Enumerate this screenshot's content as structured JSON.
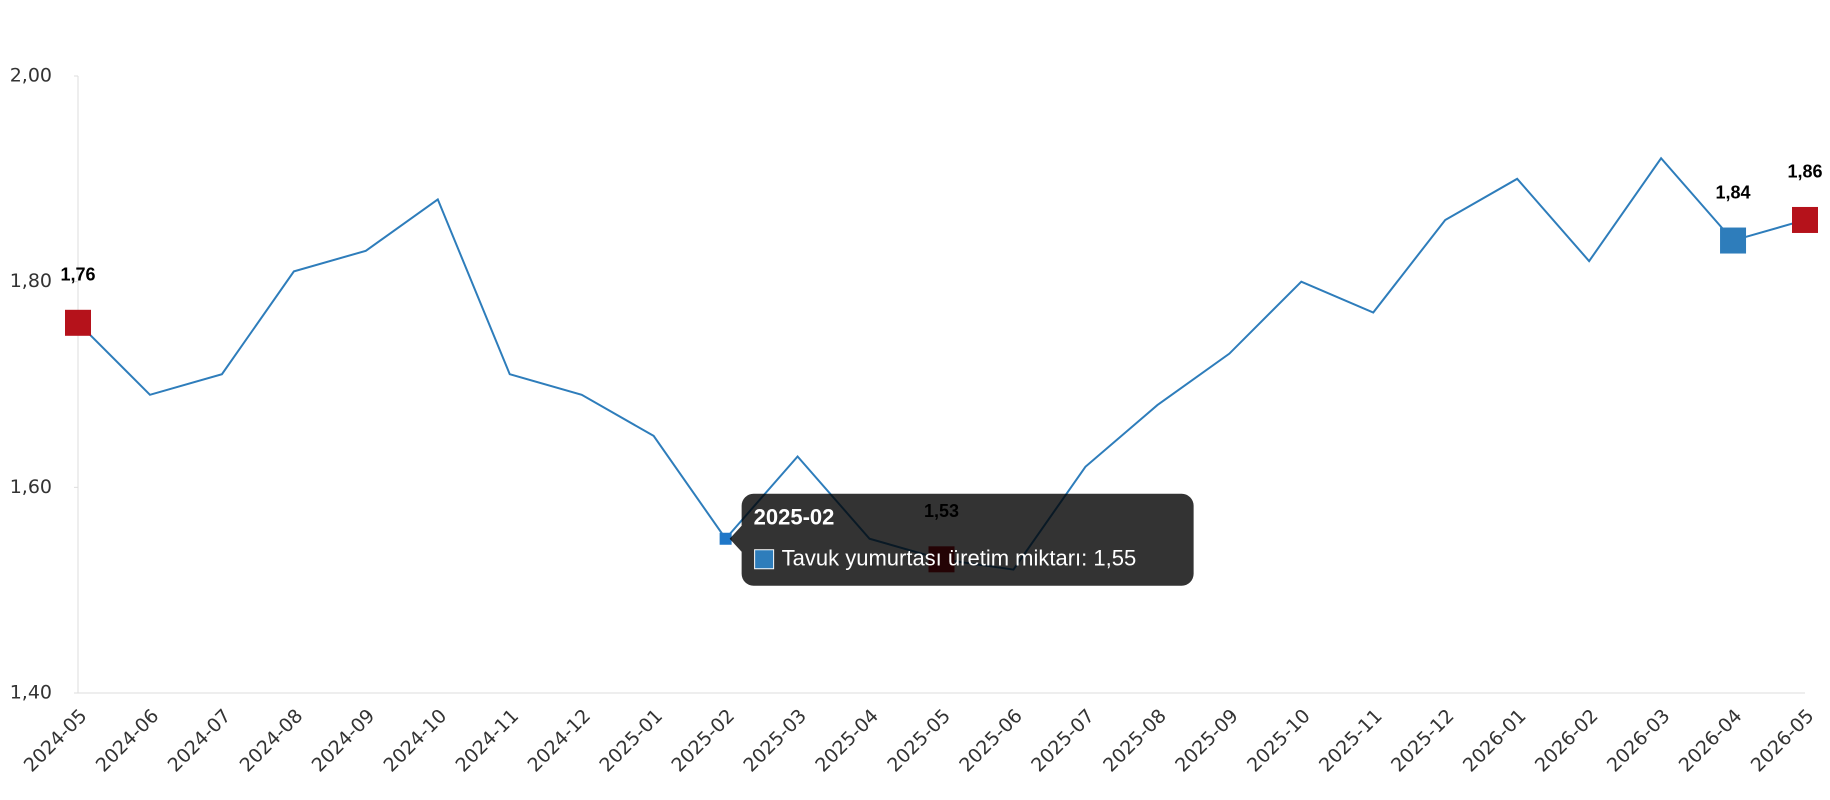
{
  "chart_data": {
    "type": "line",
    "categories": [
      "2024-05",
      "2024-06",
      "2024-07",
      "2024-08",
      "2024-09",
      "2024-10",
      "2024-11",
      "2024-12",
      "2025-01",
      "2025-02",
      "2025-03",
      "2025-04",
      "2025-05",
      "2025-06",
      "2025-07",
      "2025-08",
      "2025-09",
      "2025-10",
      "2025-11",
      "2025-12",
      "2026-01",
      "2026-02",
      "2026-03",
      "2026-04",
      "2026-05"
    ],
    "series": [
      {
        "name": "Tavuk yumurtası üretim miktarı",
        "color": "#2e7dbb",
        "values": [
          1.76,
          1.69,
          1.71,
          1.81,
          1.83,
          1.88,
          1.71,
          1.69,
          1.65,
          1.55,
          1.63,
          1.55,
          1.53,
          1.52,
          1.62,
          1.68,
          1.73,
          1.8,
          1.77,
          1.86,
          1.9,
          1.82,
          1.92,
          1.84,
          1.86
        ],
        "value_labels": [
          "1,76",
          null,
          null,
          null,
          null,
          null,
          null,
          null,
          null,
          null,
          null,
          null,
          "1,53",
          null,
          null,
          null,
          null,
          null,
          null,
          null,
          null,
          null,
          null,
          "1,84",
          "1,86"
        ],
        "marker_colors": [
          "#b5121b",
          null,
          null,
          null,
          null,
          null,
          null,
          null,
          null,
          "#1f77c8",
          null,
          null,
          "#b5121b",
          null,
          null,
          null,
          null,
          null,
          null,
          null,
          null,
          null,
          null,
          "#2e7dbb",
          "#b5121b"
        ]
      }
    ],
    "ylim": [
      1.4,
      2.0
    ],
    "yticks": [
      {
        "value": 1.4,
        "label": "1,40"
      },
      {
        "value": 1.6,
        "label": "1,60"
      },
      {
        "value": 1.8,
        "label": "1,80"
      },
      {
        "value": 2.0,
        "label": "2,00"
      }
    ],
    "tooltip": {
      "title": "2025-02",
      "text": "Tavuk yumurtası üretim miktarı: 1,55"
    }
  }
}
